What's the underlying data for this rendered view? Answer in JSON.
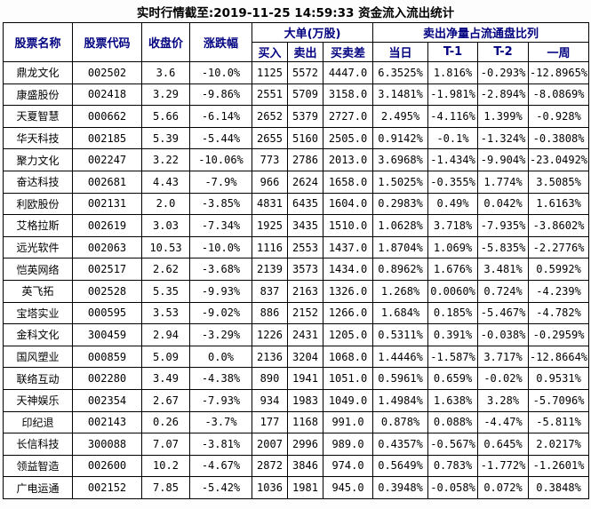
{
  "title": "实时行情截至:2019-11-25 14:59:33 资金流入流出统计",
  "colors": {
    "header_text": "#000080",
    "stock_name_text": "#315488",
    "stock_code_text": "#3E7CA8",
    "number_text": "#000000",
    "border": "#000000",
    "background": "#ffffff"
  },
  "table": {
    "headers": {
      "stock_name": "股票名称",
      "stock_code": "股票代码",
      "close_price": "收盘价",
      "change_pct": "涨跌幅",
      "large_orders_group": "大单(万股)",
      "buy": "买入",
      "sell": "卖出",
      "buy_sell_diff": "买卖差",
      "net_sell_ratio_group": "卖出净量占流通盘比列",
      "day": "当日",
      "t1": "T-1",
      "t2": "T-2",
      "week": "一周"
    },
    "rows": [
      [
        "鼎龙文化",
        "002502",
        "3.6",
        "-10.0%",
        "1125",
        "5572",
        "4447.0",
        "6.3525%",
        "1.816%",
        "-0.293%",
        "-12.8965%"
      ],
      [
        "康盛股份",
        "002418",
        "3.29",
        "-9.86%",
        "2551",
        "5709",
        "3158.0",
        "3.1481%",
        "-1.981%",
        "-2.894%",
        "-8.0869%"
      ],
      [
        "天夏智慧",
        "000662",
        "5.66",
        "-6.14%",
        "2652",
        "5379",
        "2727.0",
        "2.495%",
        "-4.116%",
        "1.399%",
        "-0.928%"
      ],
      [
        "华天科技",
        "002185",
        "5.39",
        "-5.44%",
        "2655",
        "5160",
        "2505.0",
        "0.9142%",
        "-0.1%",
        "-1.324%",
        "-0.3808%"
      ],
      [
        "聚力文化",
        "002247",
        "3.22",
        "-10.06%",
        "773",
        "2786",
        "2013.0",
        "3.6968%",
        "-1.434%",
        "-9.904%",
        "-23.0492%"
      ],
      [
        "奋达科技",
        "002681",
        "4.43",
        "-7.9%",
        "966",
        "2624",
        "1658.0",
        "1.5025%",
        "-0.355%",
        "1.774%",
        "3.5085%"
      ],
      [
        "利欧股份",
        "002131",
        "2.0",
        "-3.85%",
        "4831",
        "6435",
        "1604.0",
        "0.2983%",
        "0.49%",
        "0.042%",
        "1.6163%"
      ],
      [
        "艾格拉斯",
        "002619",
        "3.03",
        "-7.34%",
        "1925",
        "3435",
        "1510.0",
        "1.0628%",
        "3.718%",
        "-7.935%",
        "-3.8602%"
      ],
      [
        "远光软件",
        "002063",
        "10.53",
        "-10.0%",
        "1116",
        "2553",
        "1437.0",
        "1.8704%",
        "1.069%",
        "-5.835%",
        "-2.2776%"
      ],
      [
        "恺英网络",
        "002517",
        "2.62",
        "-3.68%",
        "2139",
        "3573",
        "1434.0",
        "0.8962%",
        "1.676%",
        "3.481%",
        "0.5992%"
      ],
      [
        "英飞拓",
        "002528",
        "5.35",
        "-9.93%",
        "837",
        "2163",
        "1326.0",
        "1.268%",
        "0.0060%",
        "0.724%",
        "-4.239%"
      ],
      [
        "宝塔实业",
        "000595",
        "3.53",
        "-9.02%",
        "886",
        "2152",
        "1266.0",
        "1.684%",
        "0.185%",
        "-5.467%",
        "-4.782%"
      ],
      [
        "金科文化",
        "300459",
        "2.94",
        "-3.29%",
        "1226",
        "2431",
        "1205.0",
        "0.5311%",
        "0.391%",
        "-0.038%",
        "-0.2959%"
      ],
      [
        "国风塑业",
        "000859",
        "5.09",
        "0.0%",
        "2136",
        "3204",
        "1068.0",
        "1.4446%",
        "-1.587%",
        "3.717%",
        "-12.8664%"
      ],
      [
        "联络互动",
        "002280",
        "3.49",
        "-4.38%",
        "890",
        "1941",
        "1051.0",
        "0.5961%",
        "0.659%",
        "-0.02%",
        "0.9531%"
      ],
      [
        "天神娱乐",
        "002354",
        "2.67",
        "-7.93%",
        "934",
        "1983",
        "1049.0",
        "1.4984%",
        "1.638%",
        "3.28%",
        "-5.7096%"
      ],
      [
        "印纪退",
        "002143",
        "0.26",
        "-3.7%",
        "177",
        "1168",
        "991.0",
        "0.878%",
        "0.088%",
        "-4.47%",
        "-5.811%"
      ],
      [
        "长信科技",
        "300088",
        "7.07",
        "-3.81%",
        "2007",
        "2996",
        "989.0",
        "0.4357%",
        "-0.567%",
        "0.645%",
        "2.0217%"
      ],
      [
        "领益智造",
        "002600",
        "10.2",
        "-4.67%",
        "2872",
        "3846",
        "974.0",
        "0.5649%",
        "0.783%",
        "-1.772%",
        "-1.2601%"
      ],
      [
        "广电运通",
        "002152",
        "7.85",
        "-5.42%",
        "1036",
        "1981",
        "945.0",
        "0.3948%",
        "-0.058%",
        "0.072%",
        "0.3848%"
      ]
    ]
  }
}
